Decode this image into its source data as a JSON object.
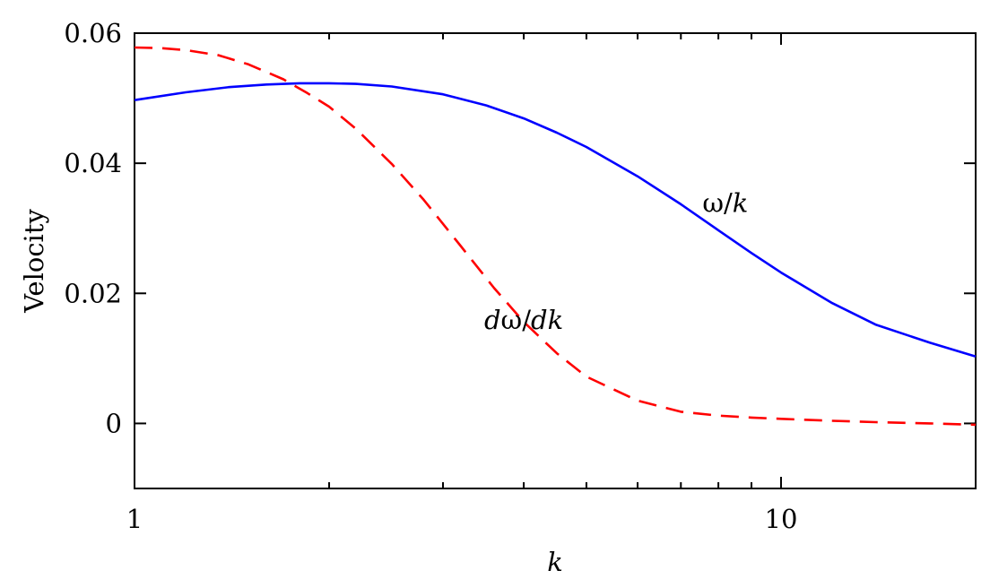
{
  "chart_data": {
    "type": "line",
    "xscale": "log",
    "xlim": [
      1,
      20
    ],
    "ylim": [
      -0.01,
      0.06
    ],
    "xlabel": "k",
    "ylabel": "Velocity",
    "grid": false,
    "x_ticks": [
      1,
      10
    ],
    "x_tick_labels": [
      "1",
      "10"
    ],
    "y_ticks": [
      0,
      0.02,
      0.04,
      0.06
    ],
    "y_tick_labels": [
      "0",
      "0.02",
      "0.04",
      "0.06"
    ],
    "x_minor_ticks": [
      2,
      3,
      4,
      5,
      6,
      7,
      8,
      9
    ],
    "series": [
      {
        "name": "ω/k",
        "color": "#0000ff",
        "style": "solid",
        "x": [
          1,
          1.2,
          1.4,
          1.6,
          1.8,
          2,
          2.2,
          2.5,
          3,
          3.5,
          4,
          4.5,
          5,
          6,
          7,
          8,
          9,
          10,
          12,
          14,
          17,
          20
        ],
        "y": [
          0.0497,
          0.0509,
          0.0517,
          0.0521,
          0.0523,
          0.0523,
          0.0522,
          0.0518,
          0.0506,
          0.0489,
          0.0469,
          0.0447,
          0.0425,
          0.038,
          0.0337,
          0.0297,
          0.0262,
          0.0232,
          0.0185,
          0.0152,
          0.0124,
          0.0103
        ]
      },
      {
        "name": "dω/dk",
        "color": "#ff0000",
        "style": "dashed",
        "x": [
          1,
          1.1,
          1.2,
          1.35,
          1.5,
          1.7,
          1.85,
          2,
          2.2,
          2.5,
          2.8,
          3.2,
          3.6,
          4,
          4.5,
          5,
          6,
          7,
          8,
          9,
          10,
          12,
          14,
          17,
          20
        ],
        "y": [
          0.0578,
          0.0577,
          0.0574,
          0.0566,
          0.0552,
          0.0529,
          0.0508,
          0.0487,
          0.0453,
          0.0399,
          0.0344,
          0.0272,
          0.0208,
          0.0156,
          0.0108,
          0.0072,
          0.0035,
          0.0018,
          0.0012,
          0.0009,
          0.0007,
          0.0004,
          0.0002,
          0.0,
          -0.0002
        ]
      }
    ],
    "annotations": [
      {
        "text": "ω/k",
        "series": 0,
        "at": {
          "x": 8.2,
          "y": 0.0325
        }
      },
      {
        "text": "dω/dk",
        "series": 1,
        "at": {
          "x": 4.0,
          "y": 0.0145
        }
      }
    ]
  }
}
